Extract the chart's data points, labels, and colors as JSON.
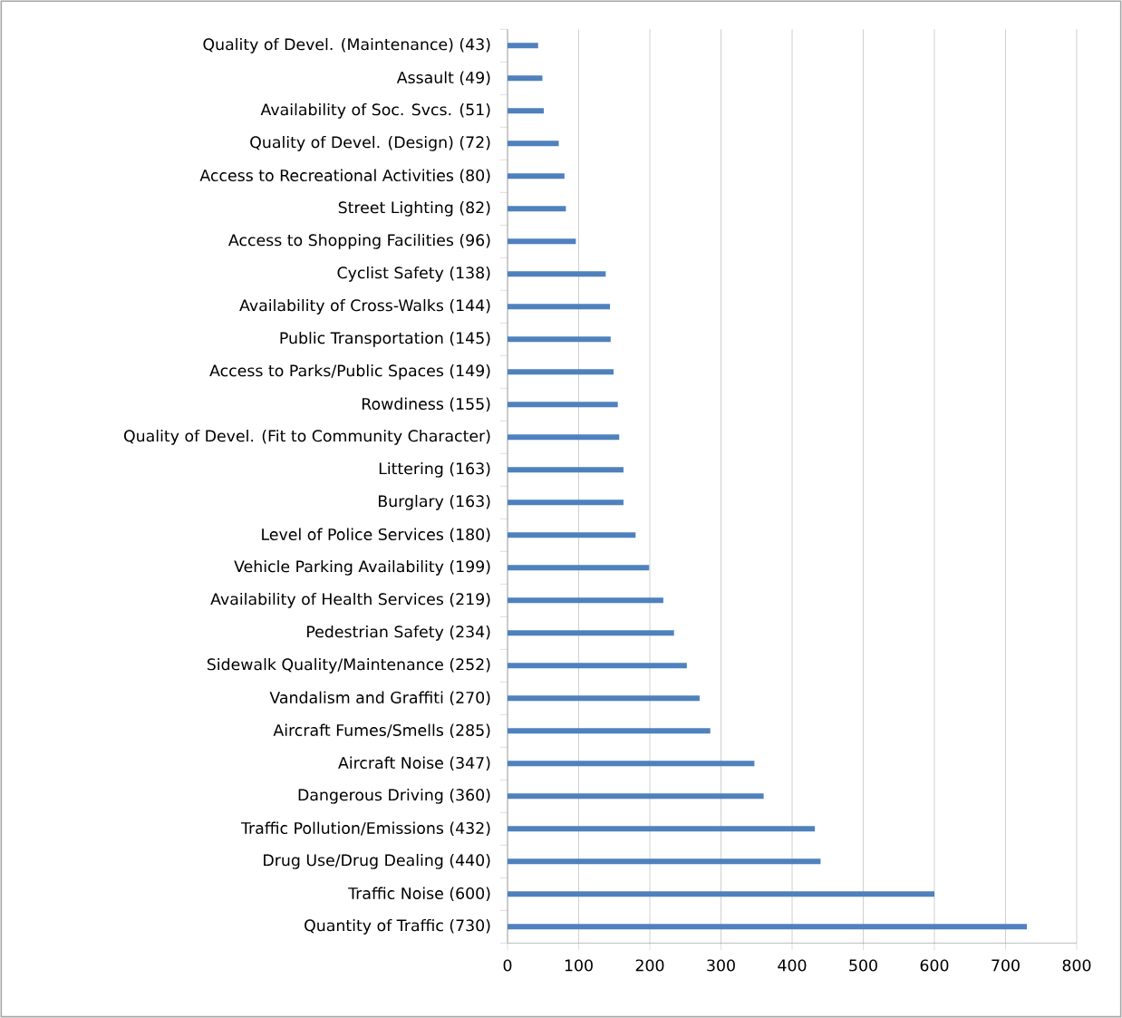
{
  "chart_data": {
    "type": "bar",
    "orientation": "horizontal",
    "categories": [
      "Quality of Devel. (Maintenance) (43)",
      "Assault (49)",
      "Availability of Soc. Svcs. (51)",
      "Quality of Devel. (Design) (72)",
      "Access to Recreational Activities (80)",
      "Street Lighting (82)",
      "Access to Shopping Facilities (96)",
      "Cyclist Safety (138)",
      "Availability of Cross-Walks (144)",
      "Public Transportation (145)",
      "Access to Parks/Public Spaces (149)",
      "Rowdiness (155)",
      "Quality of Devel. (Fit to Community Character)",
      "Littering (163)",
      "Burglary (163)",
      "Level of Police Services (180)",
      "Vehicle Parking Availability (199)",
      "Availability of Health Services (219)",
      "Pedestrian Safety (234)",
      "Sidewalk Quality/Maintenance (252)",
      "Vandalism and Graffiti  (270)",
      "Aircraft Fumes/Smells (285)",
      "Aircraft Noise (347)",
      "Dangerous Driving (360)",
      "Traffic Pollution/Emissions (432)",
      "Drug Use/Drug Dealing (440)",
      "Traffic Noise (600)",
      "Quantity of Traffic (730)"
    ],
    "values": [
      43,
      49,
      51,
      72,
      80,
      82,
      96,
      138,
      144,
      145,
      149,
      155,
      157,
      163,
      163,
      180,
      199,
      219,
      234,
      252,
      270,
      285,
      347,
      360,
      432,
      440,
      600,
      730
    ],
    "color": "#4f81bd",
    "xlim": [
      0,
      800
    ],
    "xticks": [
      0,
      100,
      200,
      300,
      400,
      500,
      600,
      700,
      800
    ],
    "grid": "x"
  }
}
